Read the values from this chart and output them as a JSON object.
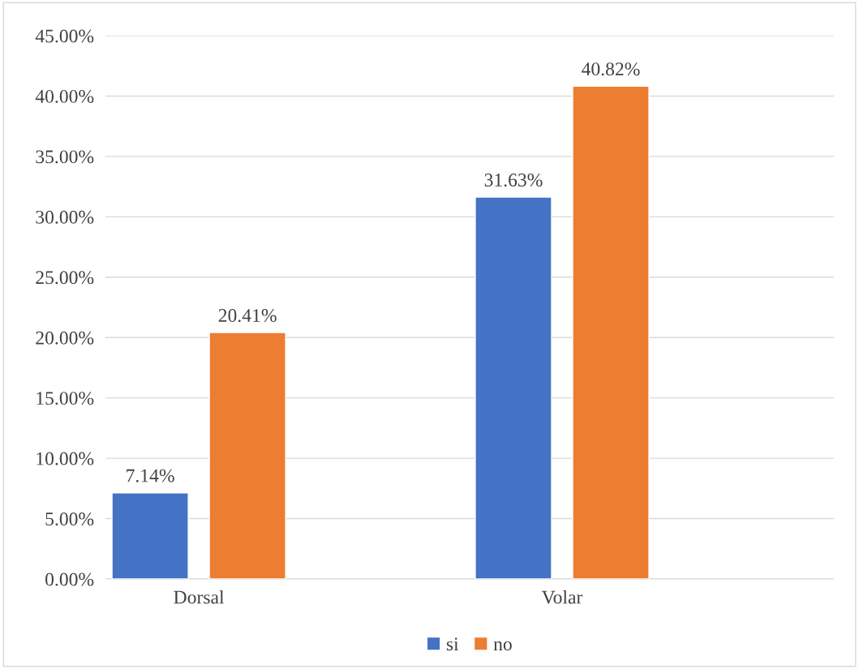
{
  "chart_data": {
    "type": "bar",
    "categories": [
      "Dorsal",
      "Volar"
    ],
    "series": [
      {
        "name": "si",
        "color": "#4472c4",
        "values": [
          7.14,
          31.63
        ],
        "value_labels": [
          "7.14%",
          "31.63%"
        ]
      },
      {
        "name": "no",
        "color": "#ed7d31",
        "values": [
          20.41,
          40.82
        ],
        "value_labels": [
          "20.41%",
          "40.82%"
        ]
      }
    ],
    "ylim": [
      0,
      45
    ],
    "yticks": [
      {
        "value": 0,
        "label": "0.00%"
      },
      {
        "value": 5,
        "label": "5.00%"
      },
      {
        "value": 10,
        "label": "10.00%"
      },
      {
        "value": 15,
        "label": "15.00%"
      },
      {
        "value": 20,
        "label": "20.00%"
      },
      {
        "value": 25,
        "label": "25.00%"
      },
      {
        "value": 30,
        "label": "30.00%"
      },
      {
        "value": 35,
        "label": "35.00%"
      },
      {
        "value": 40,
        "label": "40.00%"
      },
      {
        "value": 45,
        "label": "45.00%"
      }
    ],
    "grid": "y",
    "legend": "bottom"
  }
}
